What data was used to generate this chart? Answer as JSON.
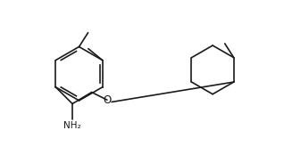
{
  "background_color": "#ffffff",
  "line_color": "#1a1a1a",
  "text_color": "#1a1a1a",
  "nh2_label": "NH₂",
  "o_label": "O",
  "figsize": [
    3.18,
    1.74
  ],
  "dpi": 100
}
